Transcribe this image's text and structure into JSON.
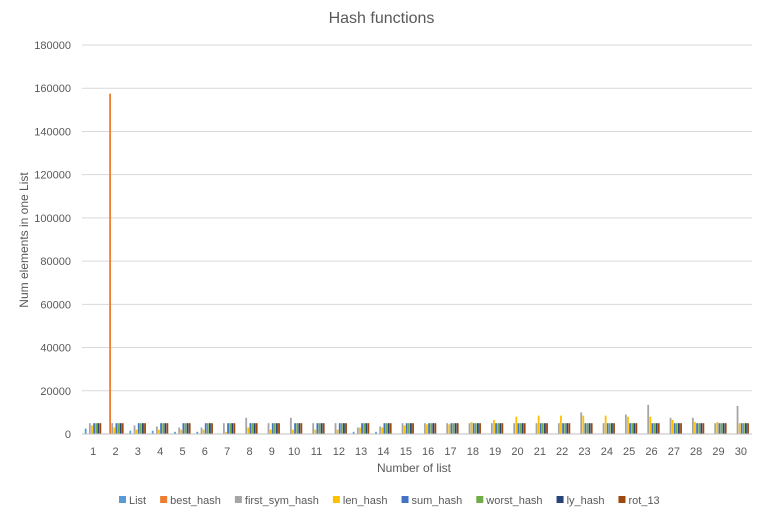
{
  "chart_data": {
    "type": "bar",
    "title": "Hash functions",
    "xlabel": "Number of list",
    "ylabel": "Num elements in one List",
    "ylim": [
      0,
      180000
    ],
    "y_ticks": [
      0,
      20000,
      40000,
      60000,
      80000,
      100000,
      120000,
      140000,
      160000,
      180000
    ],
    "grid": true,
    "legend_position": "bottom",
    "categories": [
      "1",
      "2",
      "3",
      "4",
      "5",
      "6",
      "7",
      "8",
      "9",
      "10",
      "11",
      "12",
      "13",
      "14",
      "15",
      "16",
      "17",
      "18",
      "19",
      "20",
      "21",
      "22",
      "23",
      "24",
      "25",
      "26",
      "27",
      "28",
      "29",
      "30"
    ],
    "series": [
      {
        "name": "List",
        "color": "#5B9BD5",
        "values": [
          2500,
          0,
          1500,
          1500,
          1000,
          1000,
          0,
          0,
          0,
          0,
          0,
          0,
          1000,
          1000,
          0,
          0,
          0,
          0,
          0,
          0,
          0,
          0,
          0,
          0,
          0,
          0,
          0,
          0,
          0,
          0
        ]
      },
      {
        "name": "best_hash",
        "color": "#ED7D31",
        "values": [
          0,
          157500,
          0,
          0,
          0,
          0,
          0,
          0,
          0,
          0,
          0,
          0,
          0,
          0,
          0,
          0,
          0,
          0,
          0,
          0,
          0,
          0,
          0,
          0,
          0,
          0,
          0,
          0,
          0,
          0
        ]
      },
      {
        "name": "first_sym_hash",
        "color": "#A5A5A5",
        "values": [
          5000,
          5000,
          4000,
          3500,
          3000,
          3000,
          5000,
          7500,
          5000,
          7500,
          5000,
          5000,
          3000,
          3500,
          5000,
          5000,
          5000,
          5000,
          5000,
          5000,
          5000,
          5000,
          10000,
          5000,
          9000,
          13500,
          7500,
          7500,
          5000,
          13000
        ]
      },
      {
        "name": "len_hash",
        "color": "#FFC000",
        "values": [
          4000,
          3000,
          2000,
          2000,
          2000,
          2000,
          1000,
          3000,
          2000,
          2000,
          2000,
          2000,
          3000,
          3000,
          4000,
          4500,
          4500,
          5500,
          6500,
          8000,
          8500,
          8500,
          8500,
          8500,
          8000,
          8000,
          6500,
          5500,
          5500,
          5000
        ]
      },
      {
        "name": "sum_hash",
        "color": "#4472C4",
        "values": [
          5000,
          5000,
          5000,
          5000,
          5000,
          5000,
          5000,
          5000,
          5000,
          5000,
          5000,
          5000,
          5000,
          5000,
          5000,
          5000,
          5000,
          5000,
          5000,
          5000,
          5000,
          5000,
          5000,
          5000,
          5000,
          5000,
          5000,
          5000,
          5000,
          5000
        ]
      },
      {
        "name": "worst_hash",
        "color": "#70AD47",
        "values": [
          5000,
          5000,
          5000,
          5000,
          5000,
          5000,
          5000,
          5000,
          5000,
          5000,
          5000,
          5000,
          5000,
          5000,
          5000,
          5000,
          5000,
          5000,
          5000,
          5000,
          5000,
          5000,
          5000,
          5000,
          5000,
          5000,
          5000,
          5000,
          5000,
          5000
        ]
      },
      {
        "name": "ly_hash",
        "color": "#264478",
        "values": [
          5000,
          5000,
          5000,
          5000,
          5000,
          5000,
          5000,
          5000,
          5000,
          5000,
          5000,
          5000,
          5000,
          5000,
          5000,
          5000,
          5000,
          5000,
          5000,
          5000,
          5000,
          5000,
          5000,
          5000,
          5000,
          5000,
          5000,
          5000,
          5000,
          5000
        ]
      },
      {
        "name": "rot_13",
        "color": "#9E480E",
        "values": [
          5000,
          5000,
          5000,
          5000,
          5000,
          5000,
          5000,
          5000,
          5000,
          5000,
          5000,
          5000,
          5000,
          5000,
          5000,
          5000,
          5000,
          5000,
          5000,
          5000,
          5000,
          5000,
          5000,
          5000,
          5000,
          5000,
          5000,
          5000,
          5000,
          5000
        ]
      }
    ],
    "colors": {
      "grid": "#D9D9D9",
      "axis": "#BFBFBF",
      "text": "#595959"
    }
  }
}
